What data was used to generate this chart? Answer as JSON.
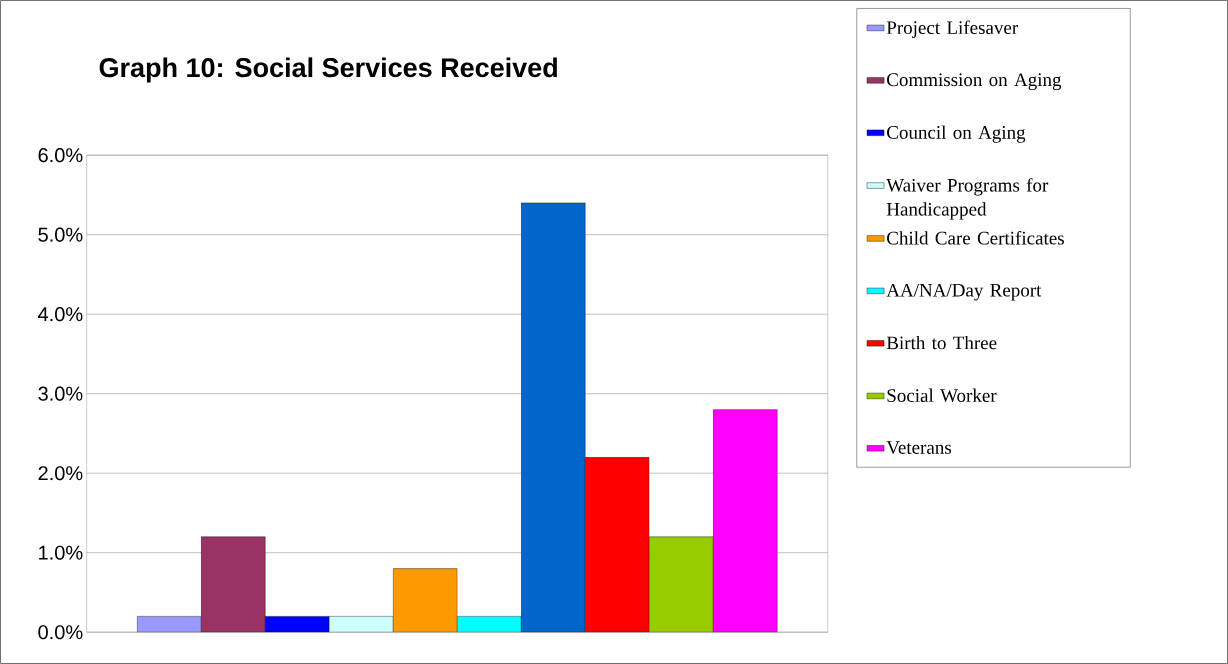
{
  "chart_data": {
    "type": "bar",
    "title": "Graph 10:  Social Services Received",
    "categories": [
      null
    ],
    "series": [
      {
        "name": "Project Lifesaver",
        "color": "#9999ff",
        "values": [
          0.2
        ]
      },
      {
        "name": "Commission on Aging",
        "color": "#993366",
        "values": [
          1.2
        ]
      },
      {
        "name": "Council on Aging",
        "color": "#0000ff",
        "values": [
          0.2
        ]
      },
      {
        "name": "Waiver Programs for Handicapped",
        "color": "#ccffff",
        "values": [
          0.2
        ]
      },
      {
        "name": "Child Care Certificates",
        "color": "#ff9900",
        "values": [
          0.8
        ]
      },
      {
        "name": "AA/NA/Day Report",
        "color": "#00ffff",
        "values": [
          0.2
        ]
      },
      {
        "color": "#0066cc",
        "values": [
          5.4
        ]
      },
      {
        "name": "Birth to Three",
        "color": "#ff0000",
        "values": [
          2.2
        ]
      },
      {
        "name": "Social Worker",
        "color": "#99cc00",
        "values": [
          1.2
        ]
      },
      {
        "name": "Veterans",
        "color": "#ff00ff",
        "values": [
          2.8
        ]
      }
    ],
    "ylim": [
      0,
      6
    ],
    "yticks": [
      {
        "value": 0,
        "label": "0.0%"
      },
      {
        "value": 1,
        "label": "1.0%"
      },
      {
        "value": 2,
        "label": "2.0%"
      },
      {
        "value": 3,
        "label": "3.0%"
      },
      {
        "value": 4,
        "label": "4.0%"
      },
      {
        "value": 5,
        "label": "5.0%"
      },
      {
        "value": 6,
        "label": "6.0%"
      }
    ],
    "grid": "y",
    "legend": "right",
    "tick_labels": "y"
  }
}
